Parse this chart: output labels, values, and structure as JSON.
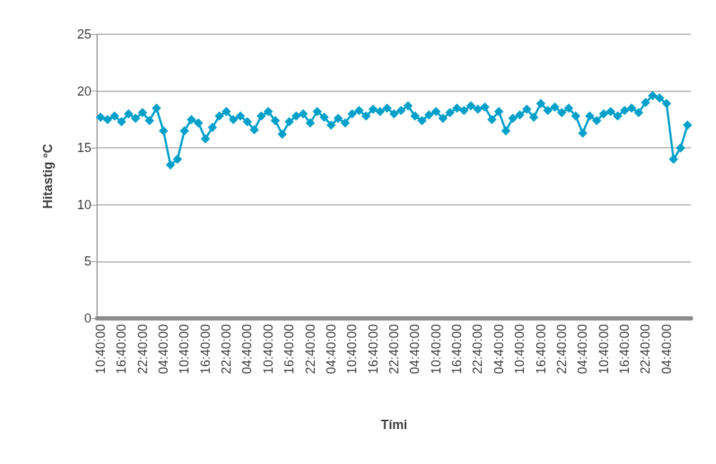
{
  "chart_data": {
    "type": "line",
    "xlabel": "Tími",
    "ylabel": "Hitastig °C",
    "categories": [
      "10:40:00",
      null,
      null,
      "16:40:00",
      null,
      null,
      "22:40:00",
      null,
      null,
      "04:40:00",
      null,
      null,
      "10:40:00",
      null,
      null,
      "16:40:00",
      null,
      null,
      "22:40:00",
      null,
      null,
      "04:40:00",
      null,
      null,
      "10:40:00",
      null,
      null,
      "16:40:00",
      null,
      null,
      "22:40:00",
      null,
      null,
      "04:40:00",
      null,
      null,
      "10:40:00",
      null,
      null,
      "16:40:00",
      null,
      null,
      "22:40:00",
      null,
      null,
      "04:40:00",
      null,
      null,
      "10:40:00",
      null,
      null,
      "16:40:00",
      null,
      null,
      "22:40:00",
      null,
      null,
      "04:40:00",
      null,
      null,
      "10:40:00",
      null,
      null,
      "16:40:00",
      null,
      null,
      "22:40:00",
      null,
      null,
      "04:40:00",
      null,
      null,
      "10:40:00",
      null,
      null,
      "16:40:00",
      null,
      null,
      "22:40:00",
      null,
      null,
      "04:40:00",
      null,
      null,
      null
    ],
    "series": [
      {
        "color": "#03a0ca",
        "values": [
          17.7,
          17.5,
          17.8,
          17.3,
          18.0,
          17.6,
          18.1,
          17.4,
          18.5,
          16.5,
          13.5,
          14.0,
          16.5,
          17.5,
          17.2,
          15.8,
          16.8,
          17.8,
          18.2,
          17.5,
          17.8,
          17.3,
          16.6,
          17.8,
          18.2,
          17.4,
          16.2,
          17.3,
          17.8,
          18.0,
          17.2,
          18.2,
          17.7,
          17.0,
          17.6,
          17.2,
          18.0,
          18.3,
          17.8,
          18.4,
          18.2,
          18.5,
          18.0,
          18.3,
          18.7,
          17.8,
          17.4,
          17.9,
          18.2,
          17.6,
          18.1,
          18.5,
          18.3,
          18.7,
          18.4,
          18.6,
          17.5,
          18.2,
          16.5,
          17.6,
          17.9,
          18.4,
          17.7,
          18.9,
          18.3,
          18.6,
          18.1,
          18.5,
          17.8,
          16.3,
          17.8,
          17.4,
          18.0,
          18.2,
          17.8,
          18.3,
          18.5,
          18.1,
          19.0,
          19.6,
          19.4,
          18.9,
          14.0,
          15.0,
          17.0
        ]
      }
    ],
    "ylim": [
      0,
      25
    ],
    "yticks": [
      0,
      5,
      10,
      15,
      20,
      25
    ],
    "grid": "y",
    "marker": "diamond",
    "line_style": "solid"
  }
}
